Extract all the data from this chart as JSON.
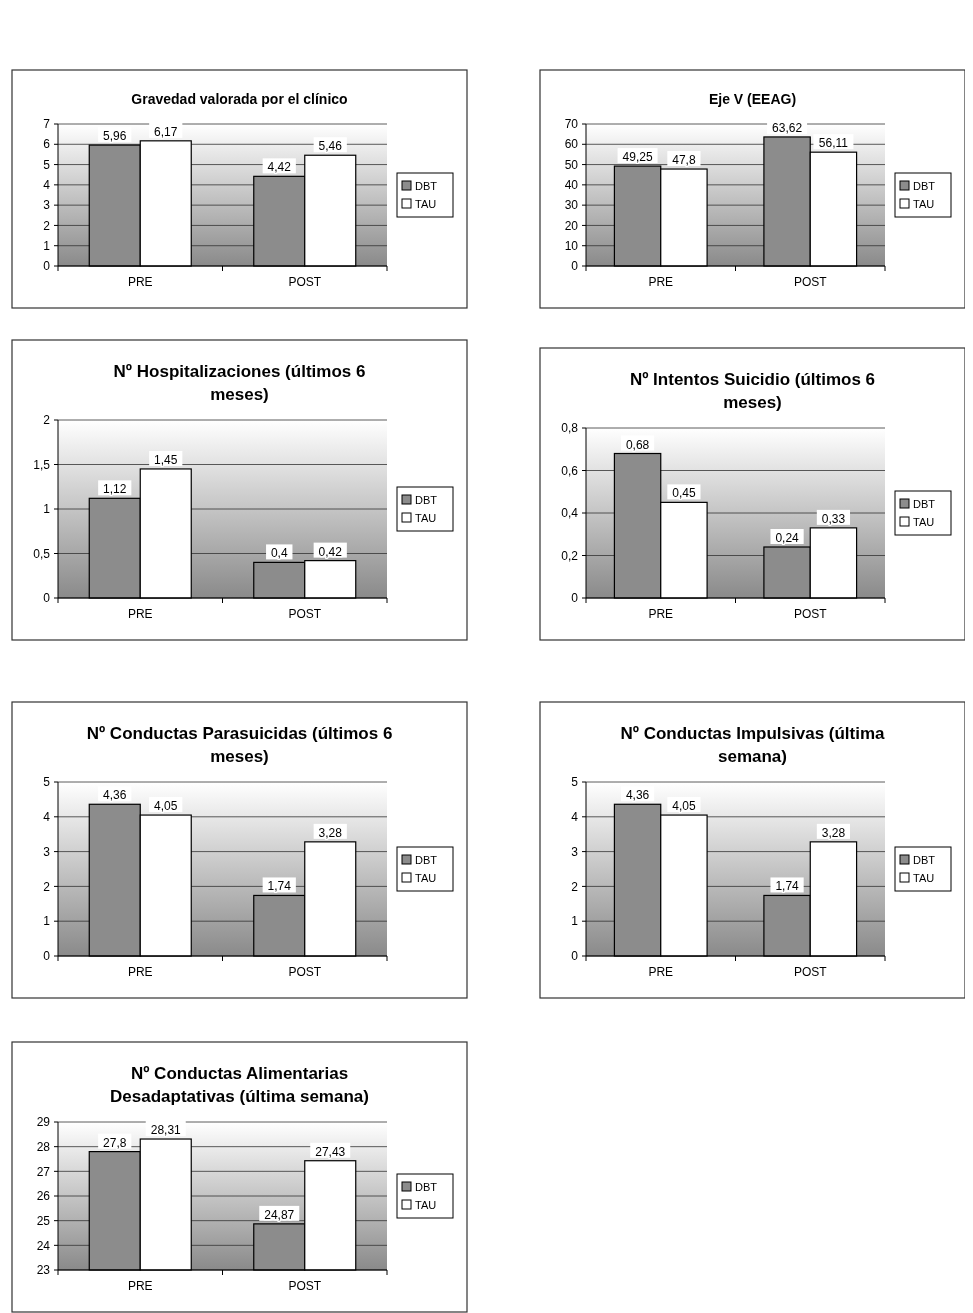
{
  "chart_data": [
    {
      "type": "bar",
      "title": "Gravedad valorada por el clínico",
      "categories": [
        "PRE",
        "POST"
      ],
      "series": [
        {
          "name": "DBT",
          "color": "#8c8c8c",
          "values": [
            5.96,
            4.42
          ],
          "value_labels": [
            "5,96",
            "4,42"
          ]
        },
        {
          "name": "TAU",
          "color": "#ffffff",
          "values": [
            6.17,
            5.46
          ],
          "value_labels": [
            "6,17",
            "5,46"
          ]
        }
      ],
      "ylim": [
        0,
        7
      ],
      "yticks": [
        0,
        1,
        2,
        3,
        4,
        5,
        6,
        7
      ],
      "grid": "y",
      "legend": "right"
    },
    {
      "type": "bar",
      "title": "Eje V (EEAG)",
      "categories": [
        "PRE",
        "POST"
      ],
      "series": [
        {
          "name": "DBT",
          "color": "#8c8c8c",
          "values": [
            49.25,
            63.62
          ],
          "value_labels": [
            "49,25",
            "63,62"
          ]
        },
        {
          "name": "TAU",
          "color": "#ffffff",
          "values": [
            47.8,
            56.11
          ],
          "value_labels": [
            "47,8",
            "56,11"
          ]
        }
      ],
      "ylim": [
        0,
        70
      ],
      "yticks": [
        0,
        10,
        20,
        30,
        40,
        50,
        60,
        70
      ],
      "grid": "y",
      "legend": "right"
    },
    {
      "type": "bar",
      "title": "Nº Hospitalizaciones (últimos 6 meses)",
      "categories": [
        "PRE",
        "POST"
      ],
      "series": [
        {
          "name": "DBT",
          "color": "#8c8c8c",
          "values": [
            1.12,
            0.4
          ],
          "value_labels": [
            "1,12",
            "0,4"
          ]
        },
        {
          "name": "TAU",
          "color": "#ffffff",
          "values": [
            1.45,
            0.42
          ],
          "value_labels": [
            "1,45",
            "0,42"
          ]
        }
      ],
      "ylim": [
        0,
        2
      ],
      "yticks": [
        0,
        {
          "value": 0.5,
          "label": "0,5"
        },
        1,
        {
          "value": 1.5,
          "label": "1,5"
        },
        2
      ],
      "grid": "y",
      "legend": "right"
    },
    {
      "type": "bar",
      "title": "Nº Intentos Suicidio (últimos 6 meses)",
      "categories": [
        "PRE",
        "POST"
      ],
      "series": [
        {
          "name": "DBT",
          "color": "#8c8c8c",
          "values": [
            0.68,
            0.24
          ],
          "value_labels": [
            "0,68",
            "0,24"
          ]
        },
        {
          "name": "TAU",
          "color": "#ffffff",
          "values": [
            0.45,
            0.33
          ],
          "value_labels": [
            "0,45",
            "0,33"
          ]
        }
      ],
      "ylim": [
        0,
        0.8
      ],
      "yticks": [
        0,
        {
          "value": 0.2,
          "label": "0,2"
        },
        {
          "value": 0.4,
          "label": "0,4"
        },
        {
          "value": 0.6,
          "label": "0,6"
        },
        {
          "value": 0.8,
          "label": "0,8"
        }
      ],
      "grid": "y",
      "legend": "right"
    },
    {
      "type": "bar",
      "title": "Nº Conductas Parasuicidas (últimos 6 meses)",
      "categories": [
        "PRE",
        "POST"
      ],
      "series": [
        {
          "name": "DBT",
          "color": "#8c8c8c",
          "values": [
            4.36,
            1.74
          ],
          "value_labels": [
            "4,36",
            "1,74"
          ]
        },
        {
          "name": "TAU",
          "color": "#ffffff",
          "values": [
            4.05,
            3.28
          ],
          "value_labels": [
            "4,05",
            "3,28"
          ]
        }
      ],
      "ylim": [
        0,
        5
      ],
      "yticks": [
        0,
        1,
        2,
        3,
        4,
        5
      ],
      "grid": "y",
      "legend": "right"
    },
    {
      "type": "bar",
      "title": "Nº Conductas Impulsivas (última semana)",
      "categories": [
        "PRE",
        "POST"
      ],
      "series": [
        {
          "name": "DBT",
          "color": "#8c8c8c",
          "values": [
            4.36,
            1.74
          ],
          "value_labels": [
            "4,36",
            "1,74"
          ]
        },
        {
          "name": "TAU",
          "color": "#ffffff",
          "values": [
            4.05,
            3.28
          ],
          "value_labels": [
            "4,05",
            "3,28"
          ]
        }
      ],
      "ylim": [
        0,
        5
      ],
      "yticks": [
        0,
        1,
        2,
        3,
        4,
        5
      ],
      "grid": "y",
      "legend": "right"
    },
    {
      "type": "bar",
      "title": "Nº Conductas Alimentarias Desadaptativas (última semana)",
      "categories": [
        "PRE",
        "POST"
      ],
      "series": [
        {
          "name": "DBT",
          "color": "#8c8c8c",
          "values": [
            27.8,
            24.87
          ],
          "value_labels": [
            "27,8",
            "24,87"
          ]
        },
        {
          "name": "TAU",
          "color": "#ffffff",
          "values": [
            28.31,
            27.43
          ],
          "value_labels": [
            "28,31",
            "27,43"
          ]
        }
      ],
      "ylim": [
        23,
        29
      ],
      "yticks": [
        23,
        24,
        25,
        26,
        27,
        28,
        29
      ],
      "grid": "y",
      "legend": "right"
    }
  ]
}
